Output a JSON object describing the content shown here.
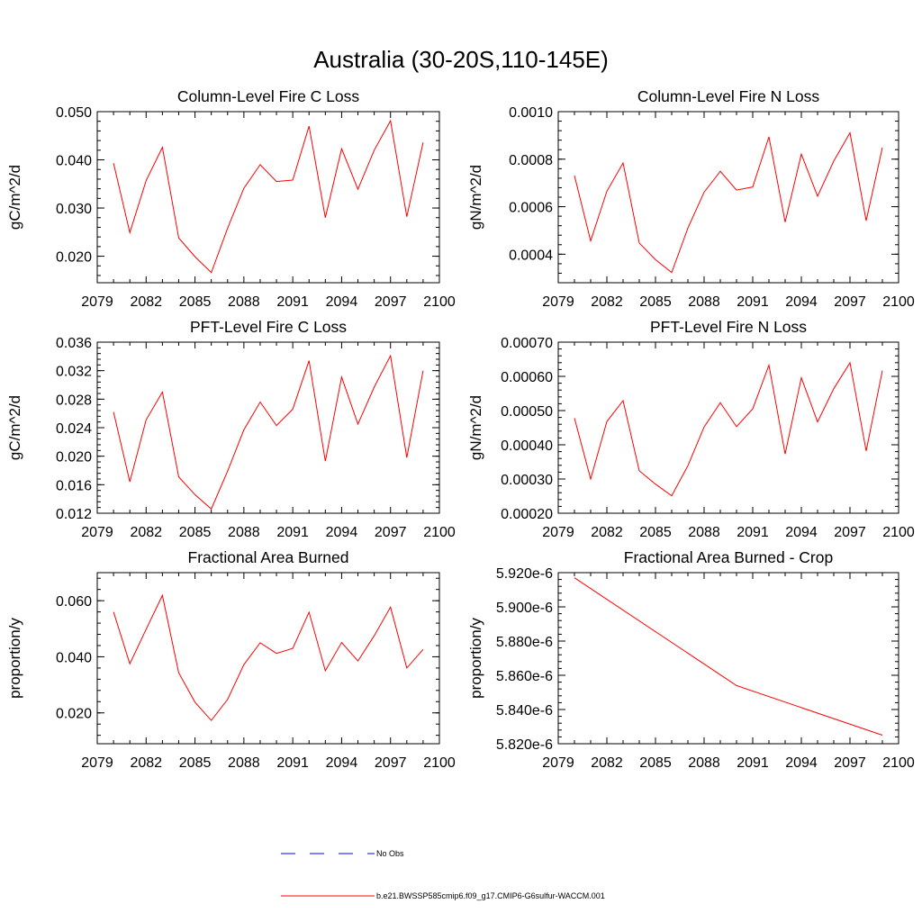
{
  "figure": {
    "title": "Australia (30-20S,110-145E)"
  },
  "legend": {
    "items": [
      {
        "label": "No Obs",
        "color": "#0000ff",
        "style": "dashed"
      },
      {
        "label": "b.e21.BWSSP585cmip6.f09_g17.CMIP6-G6sulfur-WACCM.001",
        "color": "#ff0000",
        "style": "solid"
      }
    ]
  },
  "chart_data": [
    {
      "type": "line",
      "title": "Column-Level Fire C Loss",
      "ylabel": "gC/m^2/d",
      "xlim": [
        2079,
        2100
      ],
      "ylim": [
        0.0145,
        0.05
      ],
      "xticks": [
        "2079",
        "2082",
        "2085",
        "2088",
        "2091",
        "2094",
        "2097",
        "2100"
      ],
      "yticks": [
        "0.020",
        "0.030",
        "0.040",
        "0.050"
      ],
      "x": [
        2080,
        2081,
        2082,
        2083,
        2084,
        2085,
        2086,
        2087,
        2088,
        2089,
        2090,
        2091,
        2092,
        2093,
        2094,
        2095,
        2096,
        2097,
        2098,
        2099
      ],
      "series": [
        {
          "values": [
            0.0393,
            0.0249,
            0.0357,
            0.0426,
            0.0238,
            0.0199,
            0.0166,
            0.0258,
            0.0341,
            0.039,
            0.0355,
            0.0358,
            0.047,
            0.028,
            0.0423,
            0.0339,
            0.042,
            0.0481,
            0.0282,
            0.0436
          ]
        }
      ]
    },
    {
      "type": "line",
      "title": "Column-Level Fire N Loss",
      "ylabel": "gN/m^2/d",
      "xlim": [
        2079,
        2100
      ],
      "ylim": [
        0.00028,
        0.001
      ],
      "xticks": [
        "2079",
        "2082",
        "2085",
        "2088",
        "2091",
        "2094",
        "2097",
        "2100"
      ],
      "yticks": [
        "0.0004",
        "0.0006",
        "0.0008",
        "0.0010"
      ],
      "x": [
        2080,
        2081,
        2082,
        2083,
        2084,
        2085,
        2086,
        2087,
        2088,
        2089,
        2090,
        2091,
        2092,
        2093,
        2094,
        2095,
        2096,
        2097,
        2098,
        2099
      ],
      "series": [
        {
          "values": [
            0.000731,
            0.000456,
            0.000665,
            0.000784,
            0.000447,
            0.000377,
            0.000323,
            0.00051,
            0.000661,
            0.000749,
            0.00067,
            0.000683,
            0.000894,
            0.000535,
            0.000821,
            0.000644,
            0.000792,
            0.000911,
            0.000541,
            0.000849
          ]
        }
      ]
    },
    {
      "type": "line",
      "title": "PFT-Level Fire C Loss",
      "ylabel": "gC/m^2/d",
      "xlim": [
        2079,
        2100
      ],
      "ylim": [
        0.012,
        0.036
      ],
      "xticks": [
        "2079",
        "2082",
        "2085",
        "2088",
        "2091",
        "2094",
        "2097",
        "2100"
      ],
      "yticks": [
        "0.012",
        "0.016",
        "0.020",
        "0.024",
        "0.028",
        "0.032",
        "0.036"
      ],
      "x": [
        2080,
        2081,
        2082,
        2083,
        2084,
        2085,
        2086,
        2087,
        2088,
        2089,
        2090,
        2091,
        2092,
        2093,
        2094,
        2095,
        2096,
        2097,
        2098,
        2099
      ],
      "series": [
        {
          "values": [
            0.0262,
            0.0164,
            0.0251,
            0.029,
            0.0171,
            0.0146,
            0.0126,
            0.0179,
            0.0237,
            0.0276,
            0.0243,
            0.0266,
            0.0334,
            0.0193,
            0.0311,
            0.0245,
            0.0297,
            0.0341,
            0.0198,
            0.032
          ]
        }
      ]
    },
    {
      "type": "line",
      "title": "PFT-Level Fire N Loss",
      "ylabel": "gN/m^2/d",
      "xlim": [
        2079,
        2100
      ],
      "ylim": [
        0.0002,
        0.0007
      ],
      "xticks": [
        "2079",
        "2082",
        "2085",
        "2088",
        "2091",
        "2094",
        "2097",
        "2100"
      ],
      "yticks": [
        "0.00020",
        "0.00030",
        "0.00040",
        "0.00050",
        "0.00060",
        "0.00070"
      ],
      "x": [
        2080,
        2081,
        2082,
        2083,
        2084,
        2085,
        2086,
        2087,
        2088,
        2089,
        2090,
        2091,
        2092,
        2093,
        2094,
        2095,
        2096,
        2097,
        2098,
        2099
      ],
      "series": [
        {
          "values": [
            0.000478,
            0.0003,
            0.000468,
            0.000529,
            0.000324,
            0.000285,
            0.000251,
            0.000339,
            0.000452,
            0.000523,
            0.000453,
            0.000505,
            0.000633,
            0.000373,
            0.000596,
            0.000467,
            0.000564,
            0.00064,
            0.000382,
            0.000617
          ]
        }
      ]
    },
    {
      "type": "line",
      "title": "Fractional Area Burned",
      "ylabel": "proportion/y",
      "xlim": [
        2079,
        2100
      ],
      "ylim": [
        0.009,
        0.07
      ],
      "xticks": [
        "2079",
        "2082",
        "2085",
        "2088",
        "2091",
        "2094",
        "2097",
        "2100"
      ],
      "yticks": [
        "0.020",
        "0.040",
        "0.060"
      ],
      "x": [
        2080,
        2081,
        2082,
        2083,
        2084,
        2085,
        2086,
        2087,
        2088,
        2089,
        2090,
        2091,
        2092,
        2093,
        2094,
        2095,
        2096,
        2097,
        2098,
        2099
      ],
      "series": [
        {
          "values": [
            0.056,
            0.0375,
            0.0498,
            0.0619,
            0.0343,
            0.0238,
            0.0173,
            0.0248,
            0.0372,
            0.045,
            0.0412,
            0.043,
            0.0559,
            0.035,
            0.0451,
            0.0385,
            0.0475,
            0.0577,
            0.036,
            0.0426
          ]
        }
      ]
    },
    {
      "type": "line",
      "title": "Fractional Area Burned - Crop",
      "ylabel": "proportion/y",
      "xlim": [
        2079,
        2100
      ],
      "ylim": [
        5.82e-06,
        5.92e-06
      ],
      "xticks": [
        "2079",
        "2082",
        "2085",
        "2088",
        "2091",
        "2094",
        "2097",
        "2100"
      ],
      "yticks": [
        "5.820e-6",
        "5.840e-6",
        "5.860e-6",
        "5.880e-6",
        "5.900e-6",
        "5.920e-6"
      ],
      "x": [
        2080,
        2090,
        2099
      ],
      "series": [
        {
          "values": [
            5.917e-06,
            5.854e-06,
            5.825e-06
          ]
        }
      ]
    }
  ]
}
